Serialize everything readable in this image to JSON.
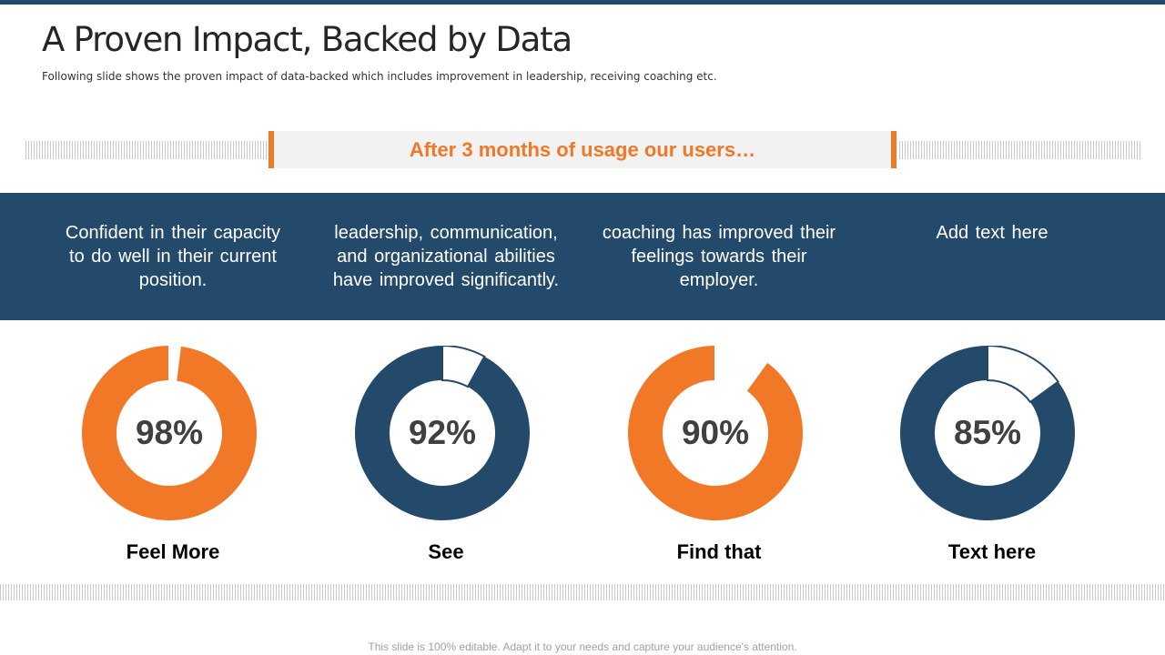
{
  "header": {
    "title": "A Proven Impact, Backed by Data",
    "subtitle": "Following slide shows the proven impact of data-backed which includes improvement in leadership, receiving coaching etc."
  },
  "banner": {
    "text": "After 3 months of usage our users…"
  },
  "colors": {
    "orange": "#f07826",
    "navy": "#244a6b",
    "remainder": "#ffffff"
  },
  "descriptions": [
    "Confident in their capacity to do well in their current position.",
    "leadership, communication, and organizational abilities have improved significantly.",
    "coaching has improved their feelings towards their employer.",
    "Add text here"
  ],
  "chart_data": [
    {
      "type": "pie",
      "variant": "donut",
      "value": 98,
      "label": "98%",
      "caption": "Feel More",
      "color": "orange"
    },
    {
      "type": "pie",
      "variant": "donut",
      "value": 92,
      "label": "92%",
      "caption": "See",
      "color": "navy"
    },
    {
      "type": "pie",
      "variant": "donut",
      "value": 90,
      "label": "90%",
      "caption": "Find that",
      "color": "orange"
    },
    {
      "type": "pie",
      "variant": "donut",
      "value": 85,
      "label": "85%",
      "caption": "Text here",
      "color": "navy"
    }
  ],
  "footer": {
    "text": "This slide is 100% editable. Adapt it to your needs and capture your audience's attention."
  }
}
